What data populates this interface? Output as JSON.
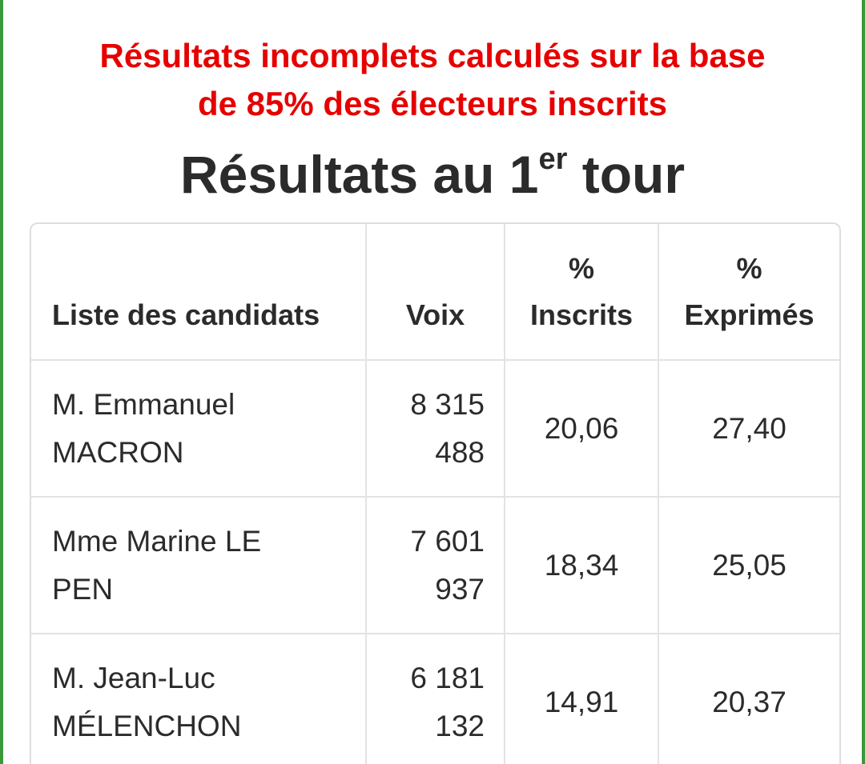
{
  "notice": {
    "line1": "Résultats incomplets calculés sur la base",
    "line2": "de 85% des électeurs inscrits"
  },
  "title": {
    "main": "Résultats au 1",
    "superscript": "er",
    "end": "tour"
  },
  "table": {
    "headers": {
      "candidates": "Liste des candidats",
      "voix": "Voix",
      "inscrits_symbol": "%",
      "inscrits": "Inscrits",
      "exprimes_symbol": "%",
      "exprimes": "Exprimés"
    },
    "rows": [
      {
        "name_line1": "M. Emmanuel",
        "name_line2": "MACRON",
        "voix_line1": "8 315",
        "voix_line2": "488",
        "pct_inscrits": "20,06",
        "pct_exprimes": "27,40"
      },
      {
        "name_line1": "Mme Marine LE",
        "name_line2": "PEN",
        "voix_line1": "7 601",
        "voix_line2": "937",
        "pct_inscrits": "18,34",
        "pct_exprimes": "25,05"
      },
      {
        "name_line1": "M. Jean-Luc",
        "name_line2": "MÉLENCHON",
        "voix_line1": "6 181",
        "voix_line2": "132",
        "pct_inscrits": "14,91",
        "pct_exprimes": "20,37"
      }
    ]
  },
  "colors": {
    "notice": "#e60000",
    "text": "#2b2b2b",
    "frame": "#3a9a3a",
    "grid": "#e3e3e3"
  }
}
